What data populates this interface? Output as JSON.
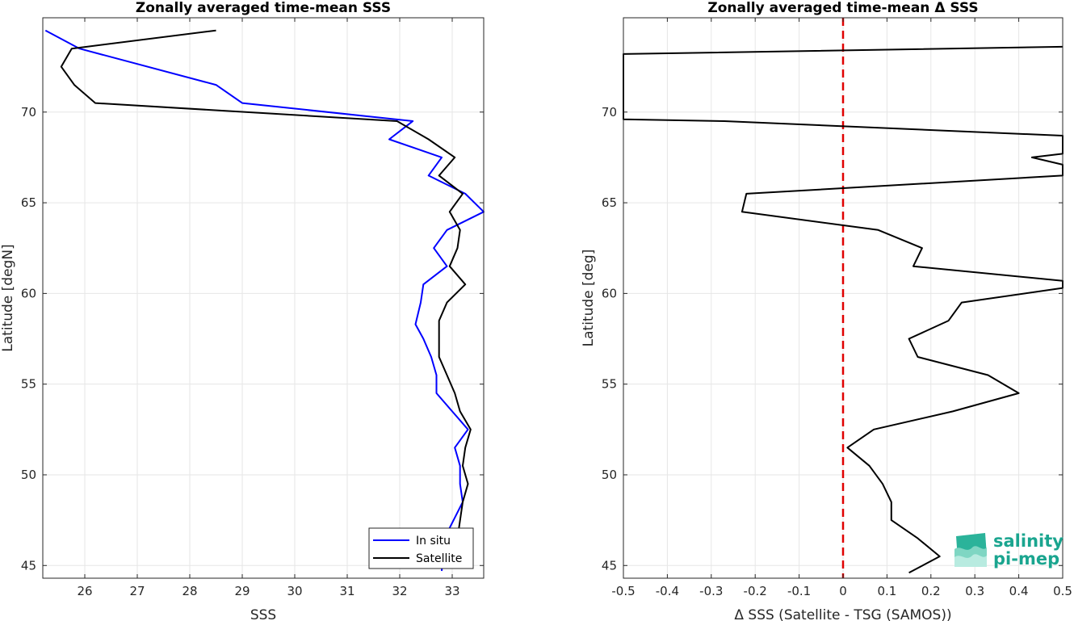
{
  "chart_data": [
    {
      "type": "line",
      "title": "Zonally averaged time-mean SSS",
      "xlabel": "SSS",
      "ylabel": "Latitude [degN]",
      "xlim": [
        25.2,
        33.6
      ],
      "ylim": [
        44.3,
        75.2
      ],
      "xticks": [
        26,
        27,
        28,
        29,
        30,
        31,
        32,
        33
      ],
      "yticks": [
        45,
        50,
        55,
        60,
        65,
        70
      ],
      "grid": true,
      "legend_position": "bottom-right",
      "series": [
        {
          "name": "In situ",
          "color": "#0000ff",
          "points": [
            [
              32.8,
              44.7
            ],
            [
              32.85,
              46.5
            ],
            [
              33.2,
              48.5
            ],
            [
              33.15,
              49.5
            ],
            [
              33.15,
              50.5
            ],
            [
              33.05,
              51.5
            ],
            [
              33.3,
              52.5
            ],
            [
              33.0,
              53.5
            ],
            [
              32.7,
              54.5
            ],
            [
              32.7,
              55.5
            ],
            [
              32.6,
              56.5
            ],
            [
              32.45,
              57.5
            ],
            [
              32.3,
              58.3
            ],
            [
              32.4,
              59.5
            ],
            [
              32.45,
              60.5
            ],
            [
              32.9,
              61.5
            ],
            [
              32.65,
              62.5
            ],
            [
              32.9,
              63.5
            ],
            [
              33.6,
              64.5
            ],
            [
              33.25,
              65.5
            ],
            [
              32.55,
              66.5
            ],
            [
              32.8,
              67.5
            ],
            [
              31.8,
              68.5
            ],
            [
              32.25,
              69.5
            ],
            [
              29.0,
              70.5
            ],
            [
              28.5,
              71.5
            ],
            [
              25.9,
              73.5
            ],
            [
              25.25,
              74.5
            ]
          ]
        },
        {
          "name": "Satellite",
          "color": "#000000",
          "points": [
            [
              32.8,
              45.0
            ],
            [
              33.1,
              46.5
            ],
            [
              33.2,
              48.5
            ],
            [
              33.3,
              49.5
            ],
            [
              33.2,
              50.5
            ],
            [
              33.25,
              51.5
            ],
            [
              33.35,
              52.5
            ],
            [
              33.15,
              53.5
            ],
            [
              33.05,
              54.5
            ],
            [
              32.9,
              55.5
            ],
            [
              32.75,
              56.5
            ],
            [
              32.75,
              57.5
            ],
            [
              32.75,
              58.5
            ],
            [
              32.9,
              59.5
            ],
            [
              33.25,
              60.5
            ],
            [
              32.95,
              61.5
            ],
            [
              33.1,
              62.5
            ],
            [
              33.15,
              63.5
            ],
            [
              32.95,
              64.5
            ],
            [
              33.2,
              65.5
            ],
            [
              32.75,
              66.5
            ],
            [
              33.05,
              67.5
            ],
            [
              32.55,
              68.5
            ],
            [
              31.95,
              69.5
            ],
            [
              26.2,
              70.5
            ],
            [
              25.8,
              71.5
            ],
            [
              25.55,
              72.5
            ],
            [
              25.75,
              73.5
            ],
            [
              28.5,
              74.5
            ]
          ]
        }
      ]
    },
    {
      "type": "line",
      "title": "Zonally averaged time-mean Δ SSS",
      "xlabel": "Δ SSS (Satellite - TSG (SAMOS))",
      "ylabel": "Latitude [deg]",
      "xlim": [
        -0.5,
        0.5
      ],
      "ylim": [
        44.3,
        75.2
      ],
      "xticks": [
        -0.5,
        -0.4,
        -0.3,
        -0.2,
        -0.1,
        0,
        0.1,
        0.2,
        0.3,
        0.4,
        0.5
      ],
      "xticklabels": [
        "-0.5",
        "-0.4",
        "-0.3",
        "-0.2",
        "-0.1",
        "0",
        "0.1",
        "0.2",
        "0.3",
        "0.4",
        "0.5"
      ],
      "yticks": [
        45,
        50,
        55,
        60,
        65,
        70
      ],
      "grid": true,
      "reference_line": {
        "x": 0,
        "color": "#e00000",
        "style": "dashed"
      },
      "series": [
        {
          "color": "#000000",
          "points": [
            [
              0.15,
              44.6
            ],
            [
              0.22,
              45.5
            ],
            [
              0.17,
              46.5
            ],
            [
              0.11,
              47.5
            ],
            [
              0.11,
              48.5
            ],
            [
              0.09,
              49.5
            ],
            [
              0.06,
              50.5
            ],
            [
              0.01,
              51.5
            ],
            [
              0.07,
              52.5
            ],
            [
              0.25,
              53.5
            ],
            [
              0.4,
              54.5
            ],
            [
              0.33,
              55.5
            ],
            [
              0.17,
              56.5
            ],
            [
              0.15,
              57.5
            ],
            [
              0.24,
              58.5
            ],
            [
              0.27,
              59.5
            ],
            [
              0.5,
              60.3
            ],
            [
              0.5,
              60.7
            ],
            [
              0.16,
              61.5
            ],
            [
              0.18,
              62.5
            ],
            [
              0.08,
              63.5
            ],
            [
              -0.23,
              64.5
            ],
            [
              -0.22,
              65.5
            ],
            [
              0.5,
              66.5
            ],
            [
              0.5,
              67.1
            ],
            [
              0.43,
              67.5
            ],
            [
              0.5,
              67.7
            ],
            [
              0.5,
              68.7
            ],
            [
              -0.27,
              69.5
            ],
            [
              -0.5,
              69.6
            ],
            [
              -0.5,
              73.2
            ],
            [
              0.5,
              73.6
            ]
          ]
        }
      ]
    }
  ],
  "logo": {
    "line1": "salinity",
    "line2": "pi-mep"
  }
}
